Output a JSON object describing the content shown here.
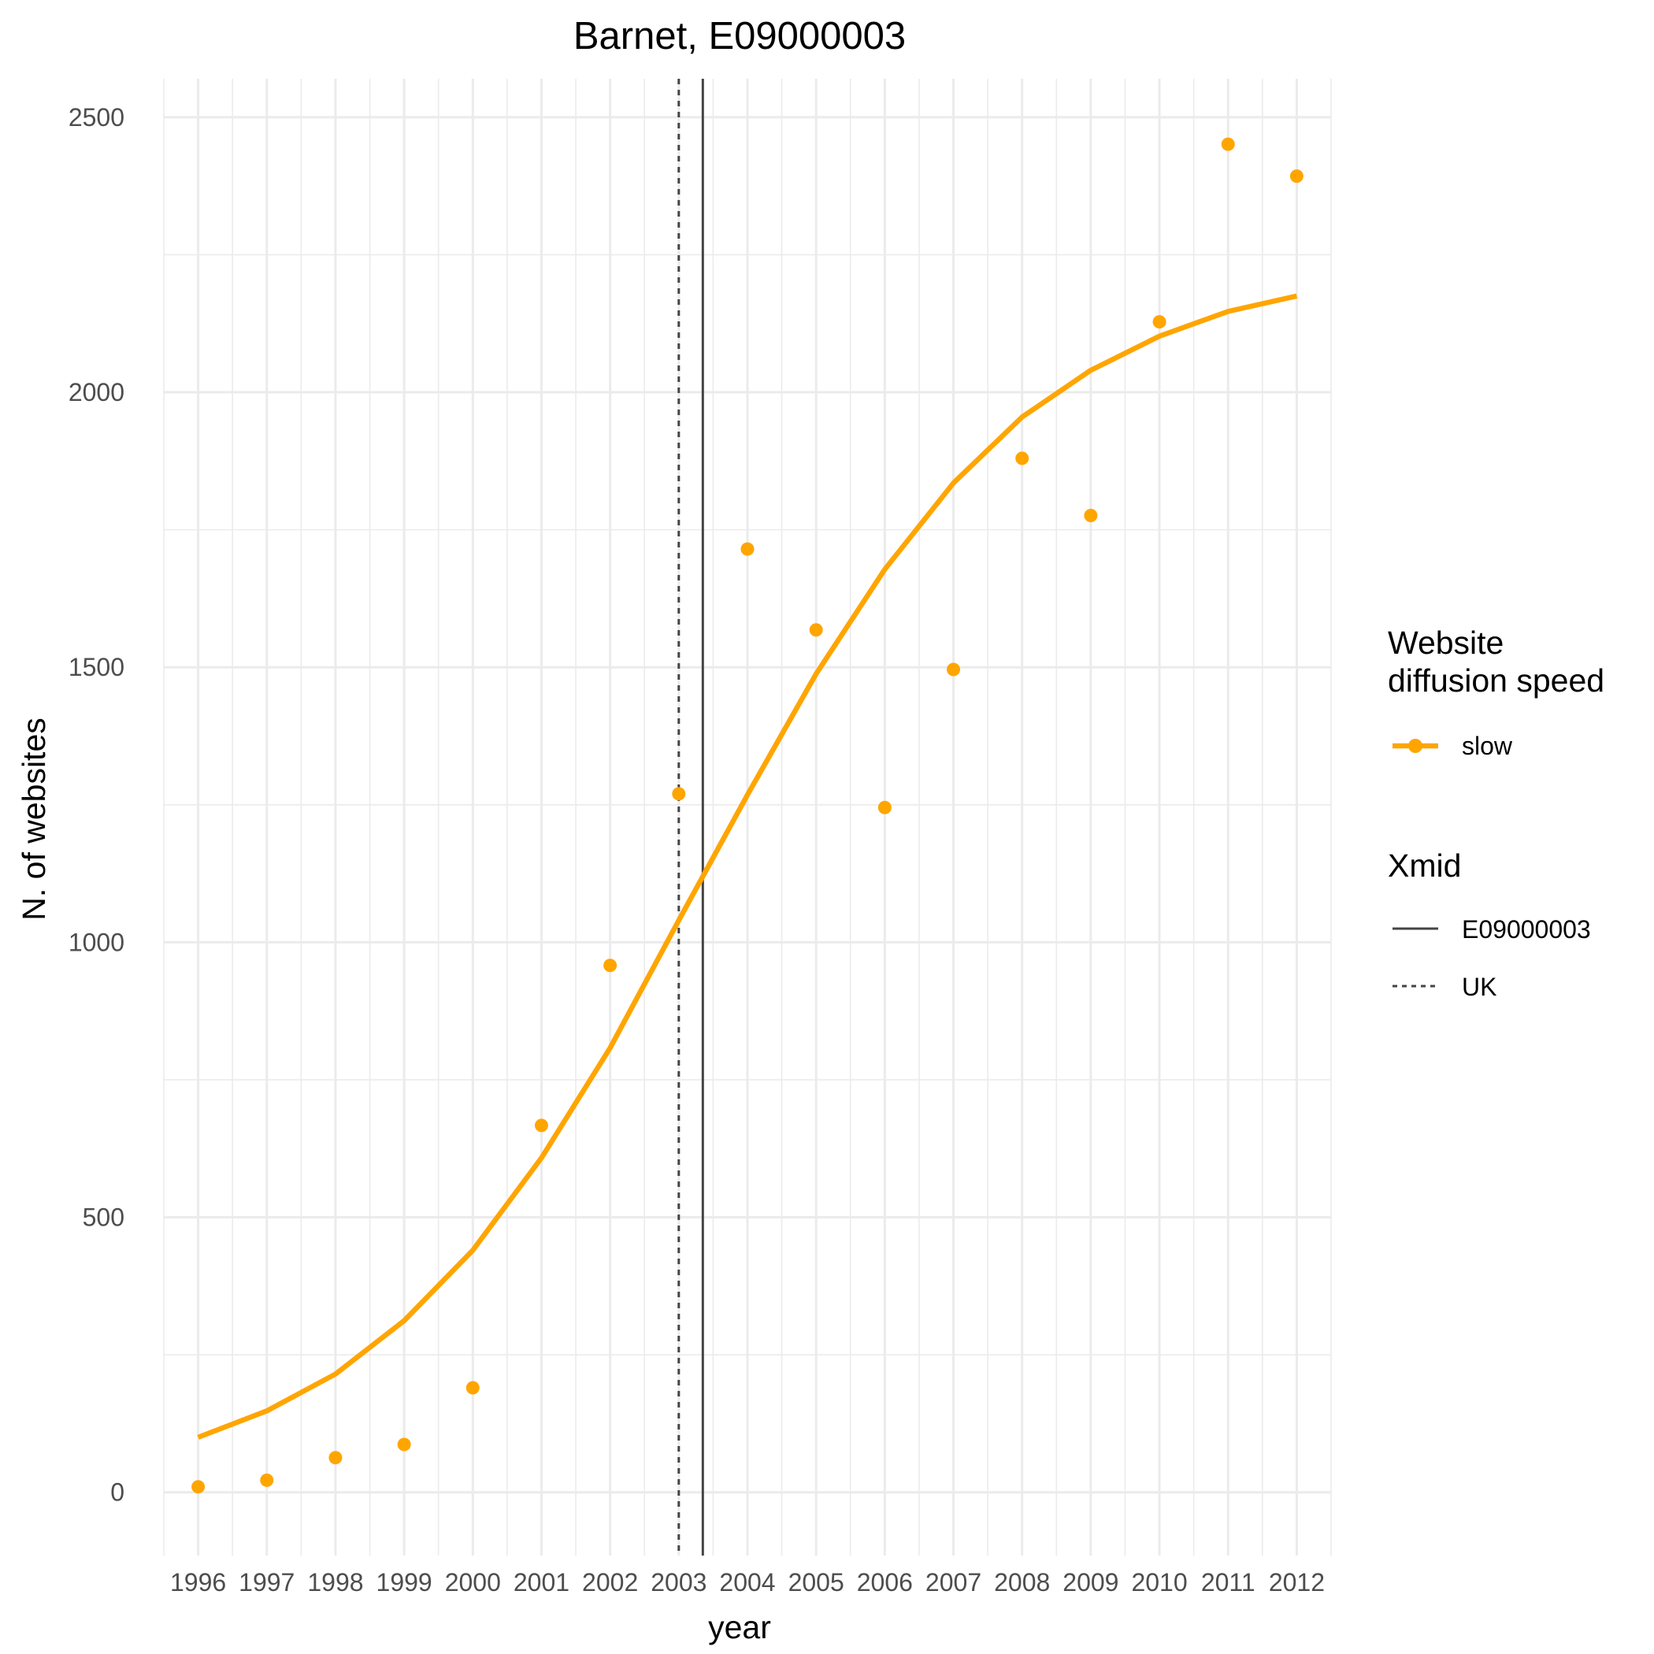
{
  "chart_data": {
    "type": "line",
    "title": "Barnet, E09000003",
    "xlabel": "year",
    "ylabel": "N. of websites",
    "categories": [
      "1996",
      "1997",
      "1998",
      "1999",
      "2000",
      "2001",
      "2002",
      "2003",
      "2004",
      "2005",
      "2006",
      "2007",
      "2008",
      "2009",
      "2010",
      "2011",
      "2012"
    ],
    "x": [
      1996,
      1997,
      1998,
      1999,
      2000,
      2001,
      2002,
      2003,
      2004,
      2005,
      2006,
      2007,
      2008,
      2009,
      2010,
      2011,
      2012
    ],
    "xlim": [
      1995.5,
      2012.5
    ],
    "ylim": [
      -115,
      2570
    ],
    "yticks": [
      0,
      500,
      1000,
      1500,
      2000,
      2500
    ],
    "ytick_labels": [
      "0",
      "500",
      "1000",
      "1500",
      "2000",
      "2500"
    ],
    "series": [
      {
        "name": "observed",
        "kind": "points",
        "legend_group": "slow",
        "values": [
          10,
          22,
          63,
          87,
          190,
          667,
          958,
          1270,
          1715,
          1568,
          1245,
          1496,
          1880,
          1776,
          2128,
          2451,
          2393
        ]
      },
      {
        "name": "fitted",
        "kind": "line",
        "legend_group": "slow",
        "values": [
          100,
          148,
          215,
          312,
          440,
          608,
          808,
          1040,
          1268,
          1488,
          1678,
          1835,
          1955,
          2040,
          2102,
          2147,
          2175
        ]
      }
    ],
    "vlines": [
      {
        "name": "E09000003",
        "x": 2003.35,
        "style": "solid"
      },
      {
        "name": "UK",
        "x": 2003.0,
        "style": "dashed"
      }
    ],
    "colors": {
      "series": "#FFA500",
      "vline": "#444444",
      "grid": "#EBEBEB"
    },
    "legend": {
      "placement": "right",
      "groups": [
        {
          "title": "Website\ndiffusion speed",
          "title_lines": [
            "Website",
            "diffusion speed"
          ],
          "items": [
            {
              "label": "slow",
              "symbol": "line-point"
            }
          ]
        },
        {
          "title": "Xmid",
          "title_lines": [
            "Xmid"
          ],
          "items": [
            {
              "label": "E09000003",
              "symbol": "solid"
            },
            {
              "label": "UK",
              "symbol": "dashed"
            }
          ]
        }
      ]
    }
  }
}
